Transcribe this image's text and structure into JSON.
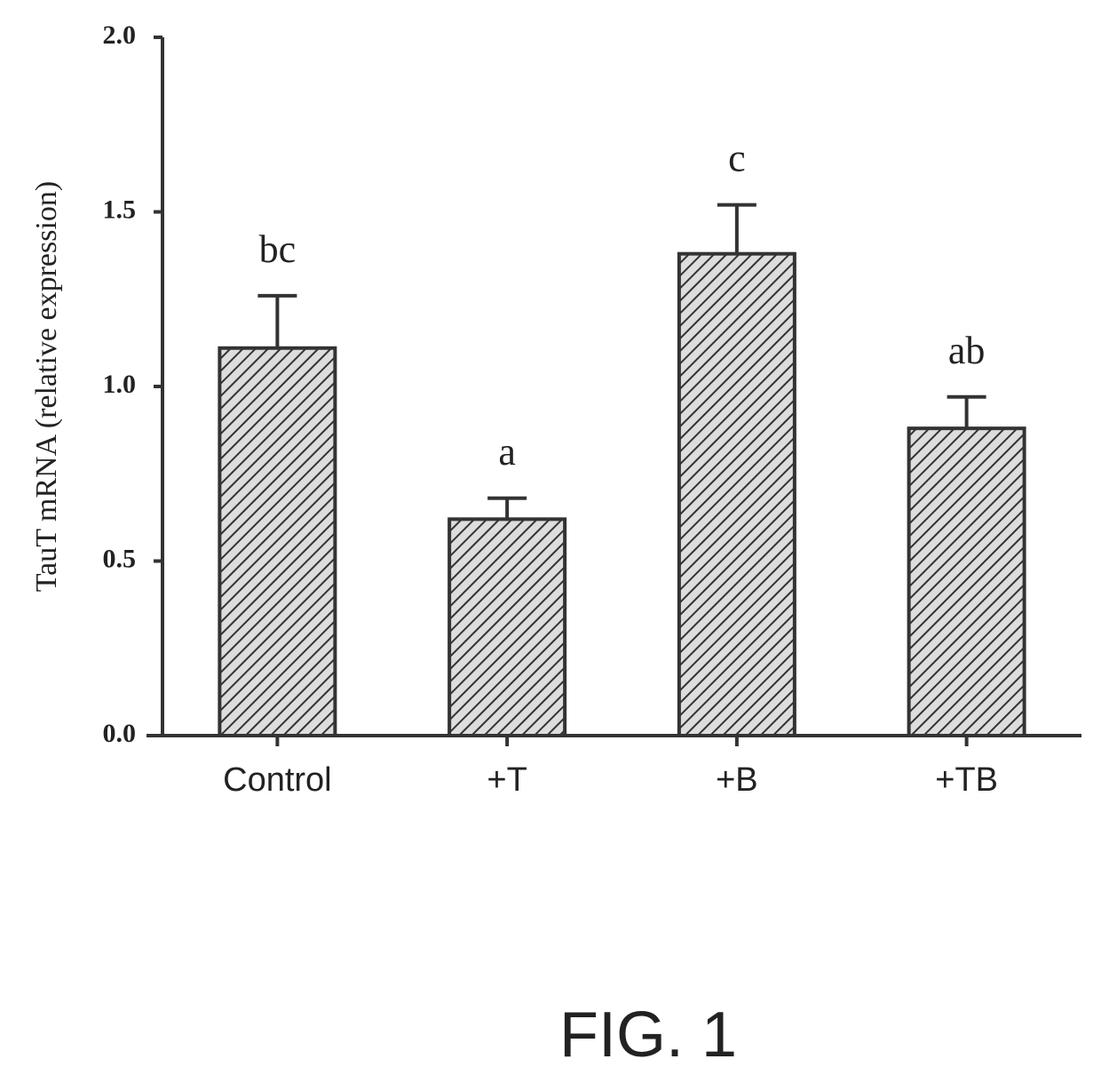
{
  "chart_data": {
    "type": "bar",
    "ylabel": "TauT mRNA (relative expression)",
    "categories": [
      "Control",
      "+T",
      "+B",
      "+TB"
    ],
    "values": [
      1.11,
      0.62,
      1.38,
      0.88
    ],
    "errors": [
      0.15,
      0.06,
      0.14,
      0.09
    ],
    "annotations": [
      "bc",
      "a",
      "c",
      "ab"
    ],
    "color": "#333333",
    "ylim": [
      0,
      2.0
    ],
    "yticks": [
      {
        "value": 0,
        "label": "0.0"
      },
      {
        "value": 0.5,
        "label": "0.5"
      },
      {
        "value": 1.0,
        "label": "1.0"
      },
      {
        "value": 1.5,
        "label": "1.5"
      },
      {
        "value": 2.0,
        "label": "2.0"
      }
    ]
  },
  "figure_label": "FIG. 1"
}
